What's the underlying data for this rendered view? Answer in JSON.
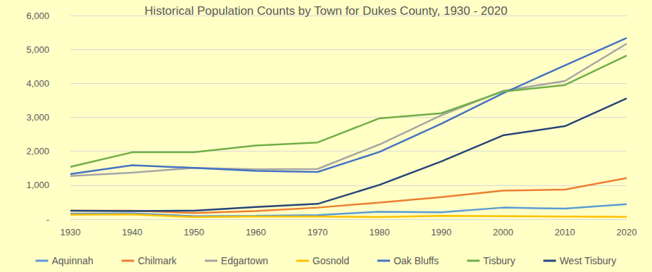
{
  "chart_data": {
    "type": "line",
    "title": "Historical Population Counts by Town for Dukes County, 1930 - 2020",
    "categories": [
      "1930",
      "1940",
      "1950",
      "1960",
      "1970",
      "1980",
      "1990",
      "2000",
      "2010",
      "2020"
    ],
    "series": [
      {
        "name": "Aquinnah",
        "color": "#5b9bd5",
        "values": [
          160,
          170,
          90,
          100,
          120,
          220,
          200,
          340,
          310,
          440
        ]
      },
      {
        "name": "Chilmark",
        "color": "#ed7d31",
        "values": [
          250,
          250,
          180,
          240,
          340,
          490,
          650,
          840,
          870,
          1210
        ]
      },
      {
        "name": "Edgartown",
        "color": "#a5a5a5",
        "values": [
          1270,
          1370,
          1510,
          1470,
          1480,
          2200,
          3060,
          3780,
          4070,
          5170
        ]
      },
      {
        "name": "Gosnold",
        "color": "#ffc000",
        "values": [
          130,
          140,
          60,
          80,
          80,
          60,
          100,
          90,
          80,
          70
        ]
      },
      {
        "name": "Oak Bluffs",
        "color": "#4472c4",
        "values": [
          1330,
          1590,
          1510,
          1420,
          1390,
          1980,
          2810,
          3710,
          4530,
          5340
        ]
      },
      {
        "name": "Tisbury",
        "color": "#70ad47",
        "values": [
          1540,
          1970,
          1970,
          2170,
          2260,
          2970,
          3120,
          3760,
          3950,
          4820
        ]
      },
      {
        "name": "West Tisbury",
        "color": "#264478",
        "values": [
          250,
          240,
          250,
          360,
          450,
          1010,
          1700,
          2470,
          2740,
          3560
        ]
      }
    ],
    "ylim": [
      0,
      6000
    ],
    "yticks": [
      {
        "value": 0,
        "label": "-"
      },
      {
        "value": 1000,
        "label": "1,000"
      },
      {
        "value": 2000,
        "label": "2,000"
      },
      {
        "value": 3000,
        "label": "3,000"
      },
      {
        "value": 4000,
        "label": "4,000"
      },
      {
        "value": 5000,
        "label": "5,000"
      },
      {
        "value": 6000,
        "label": "6,000"
      }
    ],
    "grid": true,
    "legend": "bottom",
    "marker": "none"
  }
}
